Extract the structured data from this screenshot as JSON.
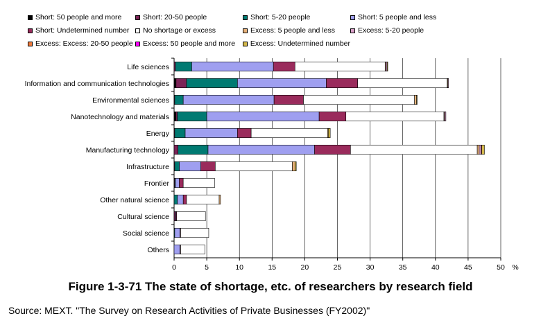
{
  "chart_data": {
    "type": "bar",
    "stacked": true,
    "orientation": "horizontal",
    "categories": [
      "Life sciences",
      "Information and communication technologies",
      "Environmental sciences",
      "Nanotechnology and materials",
      "Energy",
      "Manufacturing technology",
      "Infrastructure",
      "Frontier",
      "Other natural science",
      "Cultural science",
      "Social science",
      "Others"
    ],
    "series": [
      {
        "name": "Short:  50 people and more",
        "color": "#000000",
        "values": [
          0,
          0.3,
          0,
          0.3,
          0,
          0,
          0,
          0,
          0,
          0,
          0,
          0
        ]
      },
      {
        "name": "Short:  20-50 people",
        "color": "#7b2356",
        "values": [
          0.2,
          1.6,
          0.1,
          0.2,
          0.1,
          0.6,
          0.1,
          0.1,
          0,
          0.2,
          0,
          0
        ]
      },
      {
        "name": "Short:  5-20 people",
        "color": "#007a72",
        "values": [
          2.5,
          7.8,
          1.3,
          4.5,
          1.6,
          4.6,
          0.7,
          0.1,
          0.5,
          0,
          0.1,
          0
        ]
      },
      {
        "name": "Short:  5 people and less",
        "color": "#9f9ff0",
        "values": [
          12.5,
          13.6,
          13.9,
          17.2,
          8.0,
          16.3,
          3.3,
          0.6,
          0.9,
          0.1,
          0.8,
          0.9
        ]
      },
      {
        "name": "Short:  Undetermined number",
        "color": "#9a2b5c",
        "values": [
          3.3,
          4.8,
          4.5,
          4.1,
          2.1,
          5.5,
          2.2,
          0.6,
          0.5,
          0.1,
          0.1,
          0.1
        ]
      },
      {
        "name": "No shortage or excess",
        "color": "#ffffff",
        "values": [
          13.8,
          13.7,
          17.0,
          15.0,
          11.7,
          19.4,
          11.8,
          4.8,
          5.0,
          4.4,
          4.3,
          3.7
        ]
      },
      {
        "name": "Excess:  5 people and less",
        "color": "#e8b27a",
        "values": [
          0.1,
          0.1,
          0.3,
          0.1,
          0.1,
          0.3,
          0.4,
          0,
          0.2,
          0,
          0,
          0
        ]
      },
      {
        "name": "Excess:  5-20 people",
        "color": "#d9a0c8",
        "values": [
          0.2,
          0.1,
          0,
          0.2,
          0,
          0.3,
          0,
          0,
          0,
          0,
          0,
          0
        ]
      },
      {
        "name": "Excess:  Excess:  20-50 people",
        "color": "#f07a3c",
        "values": [
          0,
          0,
          0,
          0,
          0,
          0.1,
          0,
          0,
          0,
          0,
          0,
          0
        ]
      },
      {
        "name": "Excess:  50 people and more",
        "color": "#ff00ff",
        "values": [
          0,
          0,
          0,
          0,
          0,
          0,
          0,
          0,
          0,
          0,
          0,
          0
        ]
      },
      {
        "name": "Excess:  Undetermined number",
        "color": "#d4b84a",
        "values": [
          0.1,
          0,
          0.1,
          0,
          0.3,
          0.4,
          0.2,
          0,
          0,
          0,
          0,
          0
        ]
      }
    ],
    "xlim": [
      0,
      50
    ],
    "xticks": [
      "0",
      "5",
      "10",
      "15",
      "20",
      "25",
      "30",
      "35",
      "40",
      "45",
      "50"
    ],
    "xunit": "%",
    "grid": true,
    "legend_position": "top"
  },
  "caption": "Figure 1-3-71 The state of shortage, etc. of researchers by research field",
  "source": "Source: MEXT. \"The Survey on Research Activities of Private Businesses (FY2002)\""
}
